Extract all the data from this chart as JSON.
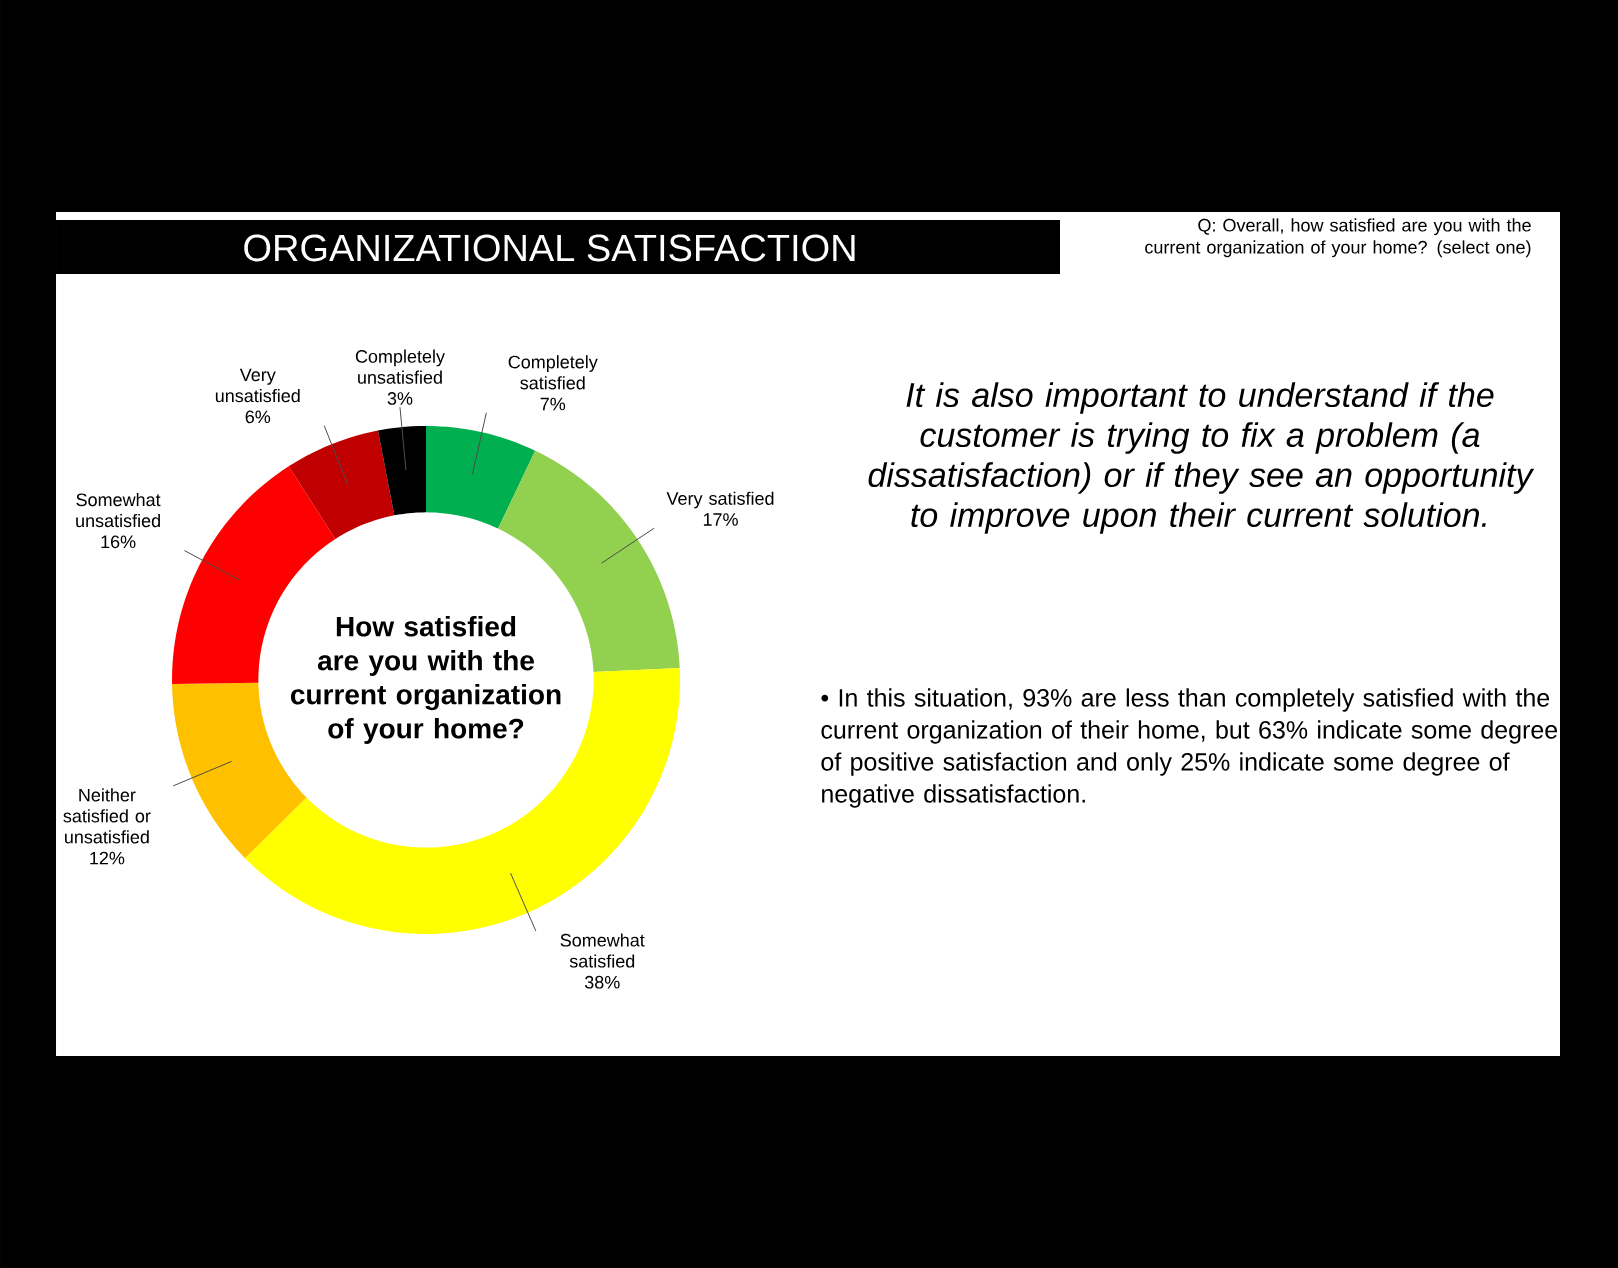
{
  "chart_data": {
    "type": "donut",
    "title": "ORGANIZATIONAL SATISFACTION",
    "subtitle": "Q:  Overall, how satisfied are you with the current organization of your home? (select one)",
    "categories": [
      "Completely satisfied",
      "Very satisfied",
      "Somewhat satisfied",
      "Neither satisfied or unsatisfied",
      "Somewhat unsatisfied",
      "Very unsatisfied",
      "Completely unsatisfied"
    ],
    "values": [
      7,
      17,
      38,
      12,
      16,
      6,
      3
    ],
    "colors": [
      "#00b050",
      "#92d050",
      "#ffff00",
      "#ffc000",
      "#ff0000",
      "#c00000",
      "#000000"
    ],
    "value_labels": [
      "7%",
      "17%",
      "38%",
      "12%",
      "16%",
      "6%",
      "3%"
    ],
    "annotations": [
      "How satisfied are you with the current organization of your home?",
      "It is also important to understand if the customer is trying to fix a problem (a dissatisfaction) or if they see an opportunity to improve upon their current solution.",
      "•  In this situation, 93% are less than completely satisfied with the current organization of their home, but 63% indicate some degree of positive satisfaction and only 25% indicate some degree of negative dissatisfaction."
    ]
  }
}
